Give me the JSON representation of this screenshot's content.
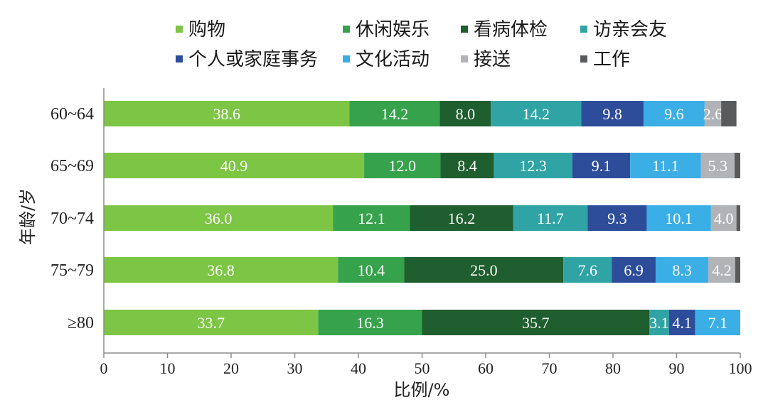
{
  "chart_data": {
    "type": "bar",
    "orientation": "horizontal",
    "stacked": true,
    "categories": [
      "60~64",
      "65~69",
      "70~74",
      "75~79",
      "≥80"
    ],
    "series": [
      {
        "name": "购物",
        "color": "#7dc544",
        "values": [
          38.6,
          40.9,
          36.0,
          36.8,
          33.7
        ],
        "labels": [
          "38.6",
          "40.9",
          "36.0",
          "36.8",
          "33.7"
        ]
      },
      {
        "name": "休闲娱乐",
        "color": "#36a24b",
        "values": [
          14.2,
          12.0,
          12.1,
          10.4,
          16.3
        ],
        "labels": [
          "14.2",
          "12.0",
          "12.1",
          "10.4",
          "16.3"
        ]
      },
      {
        "name": "看病体检",
        "color": "#1f5e2e",
        "values": [
          8.0,
          8.4,
          16.2,
          25.0,
          35.7
        ],
        "labels": [
          "8.0",
          "8.4",
          "16.2",
          "25.0",
          "35.7"
        ]
      },
      {
        "name": "访亲会友",
        "color": "#30a4a4",
        "values": [
          14.2,
          12.3,
          11.7,
          7.6,
          3.1
        ],
        "labels": [
          "14.2",
          "12.3",
          "11.7",
          "7.6",
          "3.1"
        ]
      },
      {
        "name": "个人或家庭事务",
        "color": "#2d4d9a",
        "values": [
          9.8,
          9.1,
          9.3,
          6.9,
          4.1
        ],
        "labels": [
          "9.8",
          "9.1",
          "9.3",
          "6.9",
          "4.1"
        ]
      },
      {
        "name": "文化活动",
        "color": "#3aaee5",
        "values": [
          9.6,
          11.1,
          10.1,
          8.3,
          7.1
        ],
        "labels": [
          "9.6",
          "11.1",
          "10.1",
          "8.3",
          "7.1"
        ]
      },
      {
        "name": "接送",
        "color": "#b1b3b6",
        "values": [
          2.6,
          5.3,
          4.0,
          4.2,
          0
        ],
        "labels": [
          "2.6",
          "5.3",
          "4.0",
          "4.2",
          ""
        ]
      },
      {
        "name": "工作",
        "color": "#595a5c",
        "values": [
          2.4,
          0.9,
          0.6,
          0.8,
          0
        ],
        "labels": [
          "",
          "",
          "",
          "",
          ""
        ]
      }
    ],
    "xlabel": "比例/%",
    "ylabel": "年龄/岁",
    "xlim": [
      0,
      100
    ],
    "xticks": [
      0,
      10,
      20,
      30,
      40,
      50,
      60,
      70,
      80,
      90,
      100
    ],
    "grid": false,
    "legend_position": "top"
  }
}
